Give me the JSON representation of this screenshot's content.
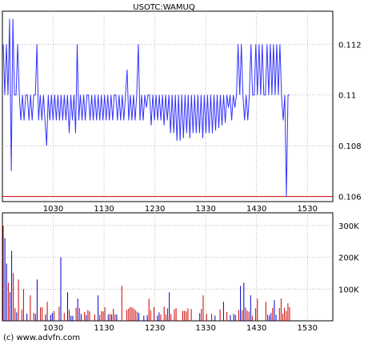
{
  "chart_data": [
    {
      "type": "line",
      "title": "USOTC:WAMUQ",
      "x_ticks": [
        "1030",
        "1130",
        "1230",
        "1330",
        "1430",
        "1530"
      ],
      "y_ticks": [
        "0.106",
        "0.108",
        "0.11",
        "0.112"
      ],
      "ylim": [
        0.1058,
        0.1133
      ],
      "xlim": [
        "0930",
        "1600"
      ],
      "grid": true,
      "line_color": "#3333ff",
      "reference_line": {
        "value": 0.106,
        "color": "#cc0000"
      },
      "series": [
        {
          "values": [
            0.112,
            0.11,
            0.112,
            0.11,
            0.113,
            0.107,
            0.113,
            0.11,
            0.11,
            0.112,
            0.11,
            0.109,
            0.11,
            0.109,
            0.11,
            0.11,
            0.109,
            0.11,
            0.109,
            0.11,
            0.11,
            0.112,
            0.109,
            0.11,
            0.109,
            0.11,
            0.109,
            0.108,
            0.11,
            0.109,
            0.11,
            0.109,
            0.11,
            0.109,
            0.11,
            0.109,
            0.11,
            0.109,
            0.11,
            0.109,
            0.11,
            0.1085,
            0.11,
            0.109,
            0.11,
            0.1085,
            0.112,
            0.109,
            0.11,
            0.109,
            0.11,
            0.109,
            0.11,
            0.11,
            0.109,
            0.11,
            0.109,
            0.11,
            0.109,
            0.11,
            0.109,
            0.11,
            0.109,
            0.11,
            0.109,
            0.11,
            0.109,
            0.11,
            0.109,
            0.11,
            0.11,
            0.109,
            0.11,
            0.109,
            0.11,
            0.109,
            0.11,
            0.111,
            0.109,
            0.11,
            0.109,
            0.11,
            0.109,
            0.11,
            0.112,
            0.109,
            0.11,
            0.109,
            0.11,
            0.1095,
            0.11,
            0.11,
            0.1088,
            0.11,
            0.109,
            0.11,
            0.109,
            0.11,
            0.109,
            0.11,
            0.1088,
            0.11,
            0.109,
            0.11,
            0.1085,
            0.11,
            0.1085,
            0.11,
            0.1082,
            0.11,
            0.1082,
            0.11,
            0.1083,
            0.11,
            0.1085,
            0.11,
            0.1083,
            0.11,
            0.1085,
            0.11,
            0.1085,
            0.11,
            0.1085,
            0.11,
            0.1083,
            0.11,
            0.1085,
            0.11,
            0.1085,
            0.11,
            0.1085,
            0.11,
            0.1086,
            0.11,
            0.1087,
            0.11,
            0.1088,
            0.11,
            0.1089,
            0.11,
            0.1095,
            0.11,
            0.109,
            0.11,
            0.1095,
            0.11,
            0.112,
            0.11,
            0.112,
            0.11,
            0.109,
            0.11,
            0.109,
            0.11,
            0.112,
            0.11,
            0.11,
            0.112,
            0.11,
            0.112,
            0.11,
            0.112,
            0.11,
            0.11,
            0.112,
            0.11,
            0.112,
            0.11,
            0.112,
            0.11,
            0.112,
            0.11,
            0.112,
            0.11,
            0.109,
            0.11,
            0.106,
            0.11,
            0.11
          ]
        }
      ]
    },
    {
      "type": "bar",
      "title": "",
      "x_ticks": [
        "1030",
        "1130",
        "1230",
        "1330",
        "1430",
        "1530"
      ],
      "y_ticks": [
        "100K",
        "200K",
        "300K"
      ],
      "ylim": [
        0,
        340000
      ],
      "xlim": [
        "0930",
        "1600"
      ],
      "grid": true,
      "colors": {
        "up": "#cc0000",
        "down": "#0000cc"
      }
    }
  ],
  "footer": {
    "copyright": "(c) www.advfn.com"
  }
}
